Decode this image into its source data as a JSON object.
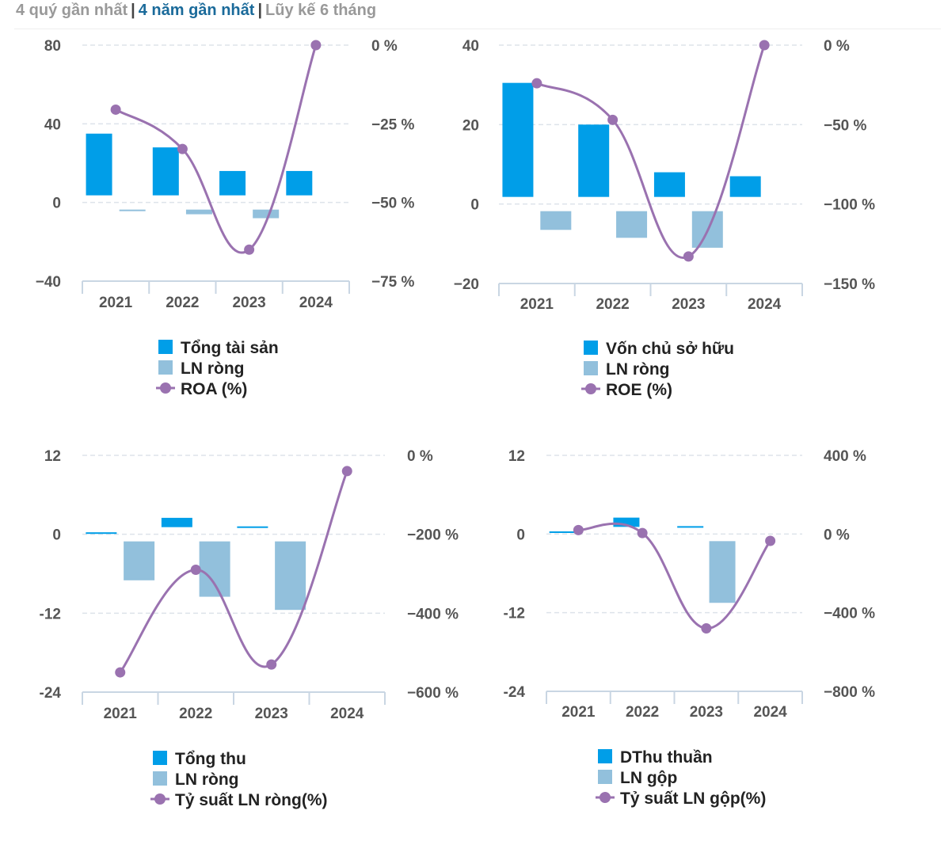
{
  "tabs": {
    "items": [
      "4 quý gần nhất",
      "4 năm gần nhất",
      "Lũy kế 6 tháng"
    ],
    "separator": "|",
    "active_index": 1
  },
  "colors": {
    "bar_primary": "#009ee8",
    "bar_secondary": "#92c0dc",
    "line": "#9a72b0",
    "grid": "#dde3ea",
    "axis": "#c9d6e3"
  },
  "chart_data": [
    {
      "type": "bar-line-combo",
      "categories": [
        "2021",
        "2022",
        "2023",
        "2024"
      ],
      "left_axis": {
        "min": -40,
        "max": 80,
        "ticks": [
          -40,
          0,
          40,
          80
        ],
        "tick_labels": [
          "−40",
          "0",
          "40",
          "80"
        ]
      },
      "right_axis": {
        "min": -75,
        "max": 0,
        "ticks": [
          -75,
          -50,
          -25,
          0
        ],
        "tick_labels": [
          "−75 %",
          "−50 %",
          "−25 %",
          "0 %"
        ]
      },
      "series": [
        {
          "name": "Tổng tài sản",
          "type": "bar",
          "color_key": "bar_primary",
          "values": [
            35,
            28,
            16,
            16
          ]
        },
        {
          "name": "LN ròng",
          "type": "bar",
          "color_key": "bar_secondary",
          "values": [
            -4,
            -6,
            -8,
            0
          ]
        },
        {
          "name": "ROA (%)",
          "type": "line",
          "color_key": "line",
          "values": [
            -20.5,
            -33,
            -65,
            0
          ]
        }
      ]
    },
    {
      "type": "bar-line-combo",
      "categories": [
        "2021",
        "2022",
        "2023",
        "2024"
      ],
      "left_axis": {
        "min": -20,
        "max": 40,
        "ticks": [
          -20,
          0,
          20,
          40
        ],
        "tick_labels": [
          "−20",
          "0",
          "20",
          "40"
        ]
      },
      "right_axis": {
        "min": -150,
        "max": 0,
        "ticks": [
          -150,
          -100,
          -50,
          0
        ],
        "tick_labels": [
          "−150 %",
          "−100 %",
          "−50 %",
          "0 %"
        ]
      },
      "series": [
        {
          "name": "Vốn chủ sở hữu",
          "type": "bar",
          "color_key": "bar_primary",
          "values": [
            30.5,
            20,
            8,
            7
          ]
        },
        {
          "name": "LN ròng",
          "type": "bar",
          "color_key": "bar_secondary",
          "values": [
            -6.5,
            -8.5,
            -11,
            0
          ]
        },
        {
          "name": "ROE (%)",
          "type": "line",
          "color_key": "line",
          "values": [
            -24,
            -47,
            -133,
            0
          ]
        }
      ]
    },
    {
      "type": "bar-line-combo",
      "categories": [
        "2021",
        "2022",
        "2023",
        "2024"
      ],
      "left_axis": {
        "min": -24,
        "max": 12,
        "ticks": [
          -24,
          -12,
          0,
          12
        ],
        "tick_labels": [
          "-24",
          "-12",
          "0",
          "12"
        ]
      },
      "right_axis": {
        "min": -600,
        "max": 0,
        "ticks": [
          -600,
          -400,
          -200,
          0
        ],
        "tick_labels": [
          "−600 %",
          "−400 %",
          "−200 %",
          "0 %"
        ]
      },
      "series": [
        {
          "name": "Tổng thu",
          "type": "bar",
          "color_key": "bar_primary",
          "values": [
            0.3,
            2.5,
            1.2,
            0
          ]
        },
        {
          "name": "LN ròng",
          "type": "bar",
          "color_key": "bar_secondary",
          "values": [
            -7,
            -9.5,
            -11.5,
            0
          ]
        },
        {
          "name": "Tỷ suất LN ròng(%)",
          "type": "line",
          "color_key": "line",
          "values": [
            -550,
            -290,
            -530,
            -40
          ]
        }
      ]
    },
    {
      "type": "bar-line-combo",
      "categories": [
        "2021",
        "2022",
        "2023",
        "2024"
      ],
      "left_axis": {
        "min": -24,
        "max": 12,
        "ticks": [
          -24,
          -12,
          0,
          12
        ],
        "tick_labels": [
          "-24",
          "-12",
          "0",
          "12"
        ]
      },
      "right_axis": {
        "min": -800,
        "max": 400,
        "ticks": [
          -800,
          -400,
          0,
          400
        ],
        "tick_labels": [
          "−800 %",
          "−400 %",
          "0 %",
          "400 %"
        ]
      },
      "series": [
        {
          "name": "DThu thuần",
          "type": "bar",
          "color_key": "bar_primary",
          "values": [
            0.4,
            2.5,
            1.2,
            0
          ]
        },
        {
          "name": "LN gộp",
          "type": "bar",
          "color_key": "bar_secondary",
          "values": [
            0,
            0,
            -10.5,
            0
          ]
        },
        {
          "name": "Tỷ suất LN gộp(%)",
          "type": "line",
          "color_key": "line",
          "values": [
            20,
            5,
            -480,
            -35
          ]
        }
      ]
    }
  ]
}
